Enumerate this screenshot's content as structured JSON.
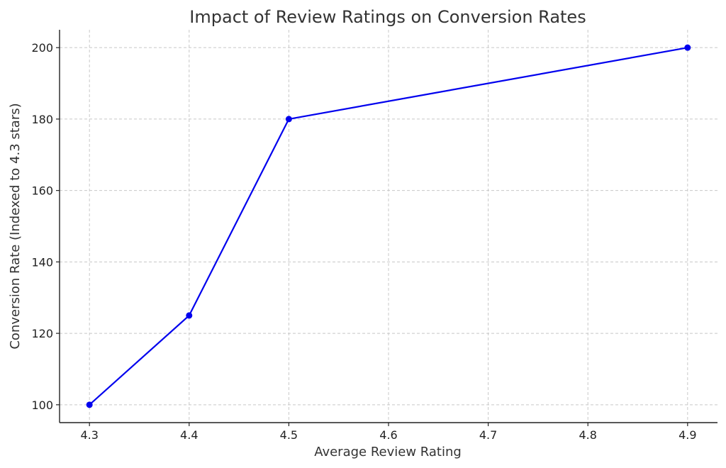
{
  "chart_data": {
    "type": "line",
    "title": "Impact of Review Ratings on Conversion Rates",
    "xlabel": "Average Review Rating",
    "ylabel": "Conversion Rate (Indexed to 4.3 stars)",
    "xlim": [
      4.27,
      4.93
    ],
    "ylim": [
      95,
      205
    ],
    "x_ticks": [
      4.3,
      4.4,
      4.5,
      4.6,
      4.7,
      4.8,
      4.9
    ],
    "x_tick_labels": [
      "4.3",
      "4.4",
      "4.5",
      "4.6",
      "4.7",
      "4.8",
      "4.9"
    ],
    "y_ticks": [
      100,
      120,
      140,
      160,
      180,
      200
    ],
    "y_tick_labels": [
      "100",
      "120",
      "140",
      "160",
      "180",
      "200"
    ],
    "grid": true,
    "series": [
      {
        "color": "#0000ee",
        "marker": "circle",
        "x": [
          4.3,
          4.4,
          4.5,
          4.9
        ],
        "y": [
          100,
          125,
          180,
          200
        ]
      }
    ]
  }
}
